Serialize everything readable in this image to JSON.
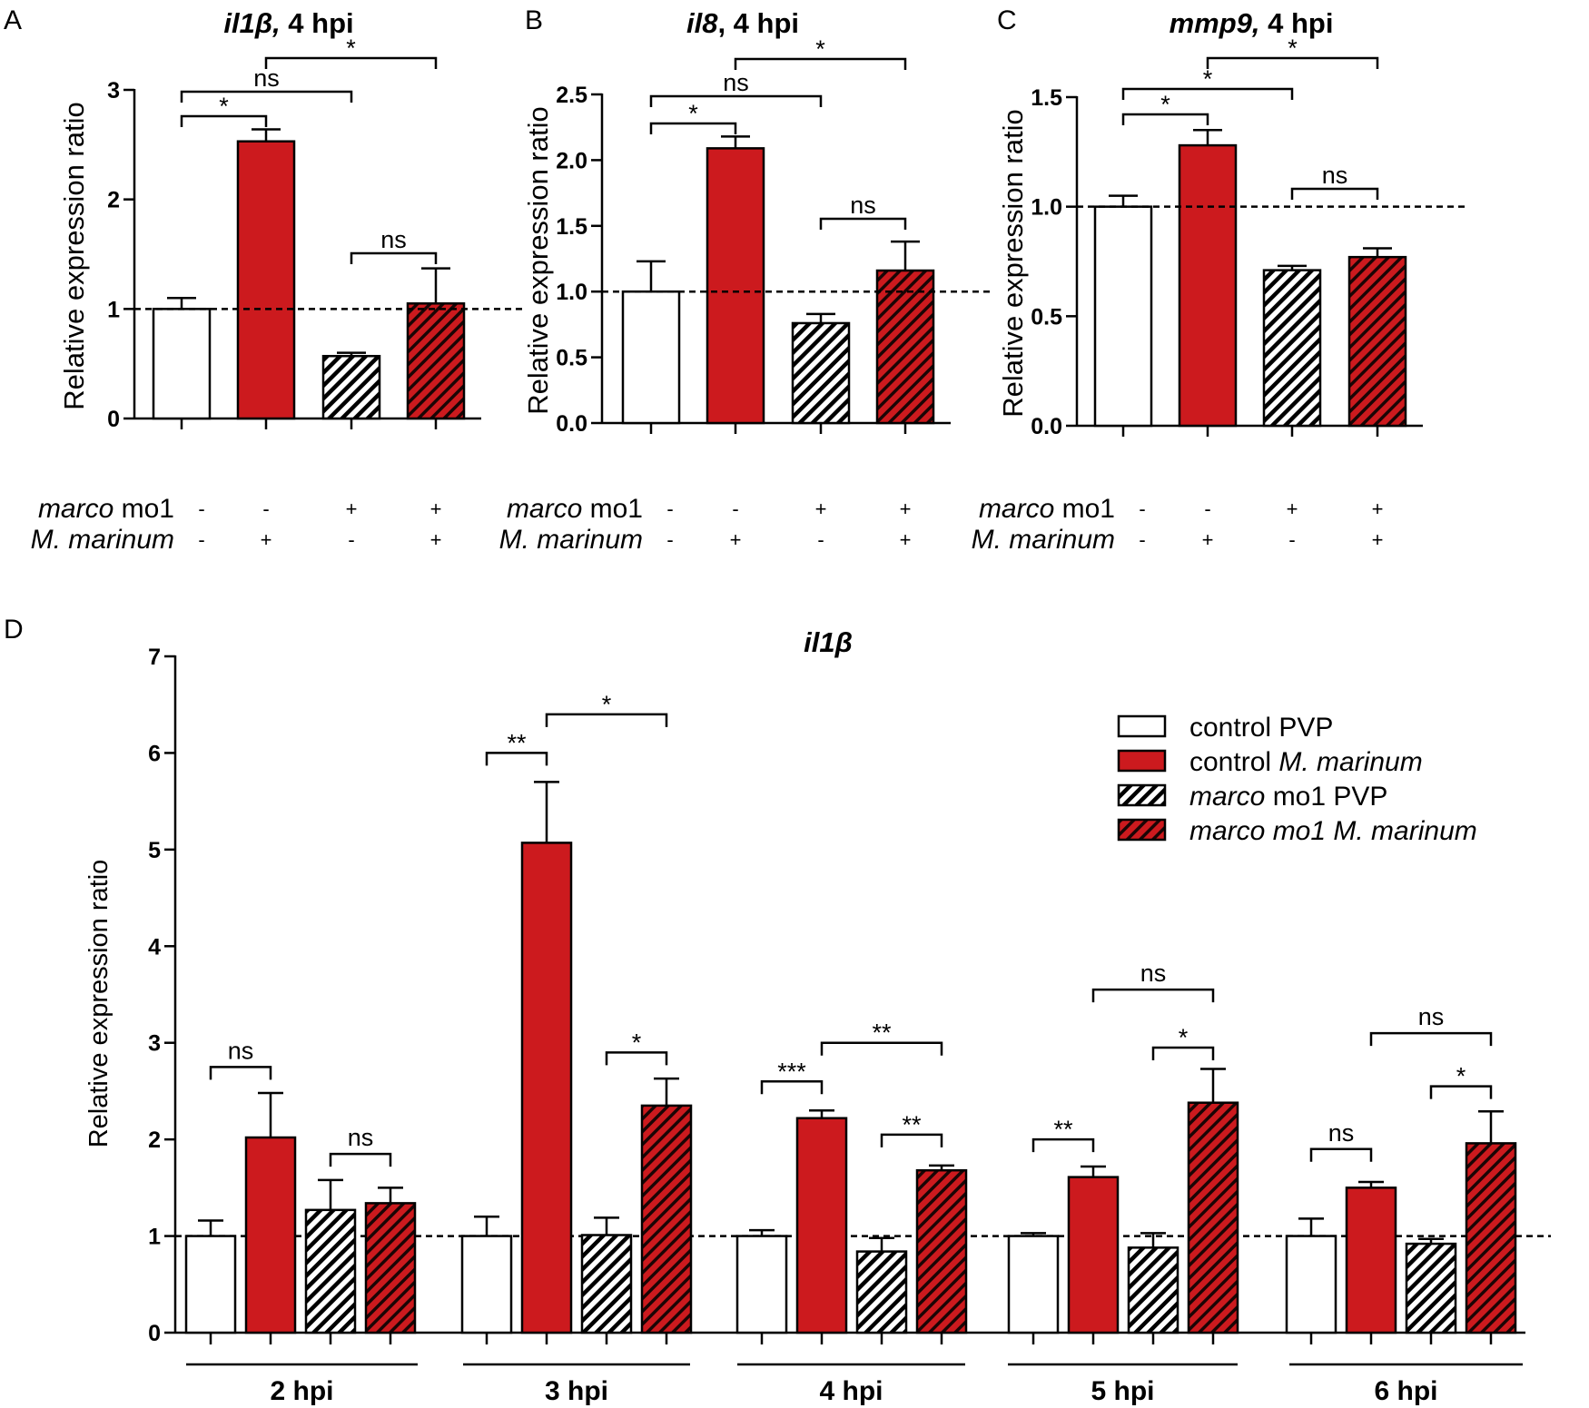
{
  "colors": {
    "control_pvp_fill": "#ffffff",
    "control_mm_fill": "#cc1a1e",
    "mo_pvp_fill": "#ffffff",
    "mo_pvp_hatch": "#000000",
    "mo_mm_fill": "#cc1a1e",
    "mo_mm_hatch": "#000000",
    "outline": "#000000"
  },
  "row_labels": [
    "marco mo1",
    "M. marinum"
  ],
  "chart_data": [
    {
      "panel": "A",
      "type": "bar",
      "title": "il1β, 4 hpi",
      "title_gene": "il1β,",
      "title_rest": " 4 hpi",
      "ylabel": "Relative  expression ratio",
      "ylim": [
        0,
        3
      ],
      "yticks": [
        "0",
        "1",
        "2",
        "3"
      ],
      "reference_line": 1,
      "categories": [
        "control PVP",
        "control M. marinum",
        "marco mo1 PVP",
        "marco mo1 M. marinum"
      ],
      "values": [
        1.0,
        2.53,
        0.57,
        1.05
      ],
      "errors": [
        0.1,
        0.11,
        0.03,
        0.32
      ],
      "marco_mo1": [
        "-",
        "-",
        "+",
        "+"
      ],
      "m_marinum": [
        "-",
        "+",
        "-",
        "+"
      ],
      "comparisons": [
        {
          "from": 0,
          "to": 1,
          "label": "*"
        },
        {
          "from": 0,
          "to": 2,
          "label": "ns"
        },
        {
          "from": 1,
          "to": 3,
          "label": "*"
        },
        {
          "from": 2,
          "to": 3,
          "label": "ns"
        }
      ]
    },
    {
      "panel": "B",
      "type": "bar",
      "title": "il8, 4 hpi",
      "title_gene": "il8",
      "title_rest": ", 4 hpi",
      "ylabel": "Relative  expression ratio",
      "ylim": [
        0,
        2.5
      ],
      "yticks": [
        "0.0",
        "0.5",
        "1.0",
        "1.5",
        "2.0",
        "2.5"
      ],
      "reference_line": 1,
      "categories": [
        "control PVP",
        "control M. marinum",
        "marco mo1 PVP",
        "marco mo1 M. marinum"
      ],
      "values": [
        1.0,
        2.09,
        0.76,
        1.16
      ],
      "errors": [
        0.23,
        0.09,
        0.07,
        0.22
      ],
      "marco_mo1": [
        "-",
        "-",
        "+",
        "+"
      ],
      "m_marinum": [
        "-",
        "+",
        "-",
        "+"
      ],
      "comparisons": [
        {
          "from": 0,
          "to": 1,
          "label": "*"
        },
        {
          "from": 0,
          "to": 2,
          "label": "ns"
        },
        {
          "from": 1,
          "to": 3,
          "label": "*"
        },
        {
          "from": 2,
          "to": 3,
          "label": "ns"
        }
      ]
    },
    {
      "panel": "C",
      "type": "bar",
      "title": "mmp9, 4 hpi",
      "title_gene": "mmp9,",
      "title_rest": " 4 hpi",
      "ylabel": "Relative  expression ratio",
      "ylim": [
        0,
        1.5
      ],
      "yticks": [
        "0.0",
        "0.5",
        "1.0",
        "1.5"
      ],
      "reference_line": 1,
      "categories": [
        "control PVP",
        "control M. marinum",
        "marco mo1 PVP",
        "marco mo1 M. marinum"
      ],
      "values": [
        1.0,
        1.28,
        0.71,
        0.77
      ],
      "errors": [
        0.05,
        0.07,
        0.02,
        0.04
      ],
      "marco_mo1": [
        "-",
        "-",
        "+",
        "+"
      ],
      "m_marinum": [
        "-",
        "+",
        "-",
        "+"
      ],
      "comparisons": [
        {
          "from": 0,
          "to": 1,
          "label": "*"
        },
        {
          "from": 0,
          "to": 2,
          "label": "*"
        },
        {
          "from": 1,
          "to": 3,
          "label": "*"
        },
        {
          "from": 2,
          "to": 3,
          "label": "ns"
        }
      ]
    },
    {
      "panel": "D",
      "type": "bar",
      "title": "il1β",
      "ylabel": "Relative expression ratio",
      "ylim": [
        0,
        7
      ],
      "yticks": [
        "0",
        "1",
        "2",
        "3",
        "4",
        "5",
        "6",
        "7"
      ],
      "reference_line": 1,
      "legend_position": "top-right",
      "legend": [
        {
          "prefix": "control",
          "rest": "PVP",
          "rest_italic": false
        },
        {
          "prefix": "control",
          "rest": "M. marinum",
          "rest_italic": true
        },
        {
          "prefix": "marco",
          "prefix_italic": true,
          "rest": "mo1 PVP",
          "rest_italic": false
        },
        {
          "prefix": "marco",
          "prefix_italic": true,
          "rest": "mo1 M. marinum",
          "rest_italic": true
        }
      ],
      "groups": [
        {
          "label": "2 hpi",
          "values": [
            1.0,
            2.02,
            1.27,
            1.34
          ],
          "errors": [
            0.16,
            0.46,
            0.31,
            0.16
          ],
          "comparisons": [
            {
              "from": 0,
              "to": 1,
              "label": "ns",
              "y": 2.75
            },
            {
              "from": 2,
              "to": 3,
              "label": "ns",
              "y": 1.85
            }
          ]
        },
        {
          "label": "3 hpi",
          "values": [
            1.0,
            5.07,
            1.01,
            2.35
          ],
          "errors": [
            0.2,
            0.63,
            0.18,
            0.28
          ],
          "comparisons": [
            {
              "from": 0,
              "to": 1,
              "label": "**",
              "y": 6.0
            },
            {
              "from": 1,
              "to": 3,
              "label": "*",
              "y": 6.4
            },
            {
              "from": 2,
              "to": 3,
              "label": "*",
              "y": 2.9
            }
          ]
        },
        {
          "label": "4 hpi",
          "values": [
            1.0,
            2.22,
            0.84,
            1.68
          ],
          "errors": [
            0.06,
            0.08,
            0.14,
            0.05
          ],
          "comparisons": [
            {
              "from": 0,
              "to": 1,
              "label": "***",
              "y": 2.6
            },
            {
              "from": 1,
              "to": 3,
              "label": "**",
              "y": 3.0
            },
            {
              "from": 2,
              "to": 3,
              "label": "**",
              "y": 2.05
            }
          ]
        },
        {
          "label": "5 hpi",
          "values": [
            1.0,
            1.61,
            0.88,
            2.38
          ],
          "errors": [
            0.03,
            0.11,
            0.15,
            0.35
          ],
          "comparisons": [
            {
              "from": 0,
              "to": 1,
              "label": "**",
              "y": 2.0
            },
            {
              "from": 1,
              "to": 3,
              "label": "ns",
              "y": 3.55
            },
            {
              "from": 2,
              "to": 3,
              "label": "*",
              "y": 2.95
            }
          ]
        },
        {
          "label": "6 hpi",
          "values": [
            1.0,
            1.5,
            0.92,
            1.96
          ],
          "errors": [
            0.18,
            0.06,
            0.05,
            0.33
          ],
          "comparisons": [
            {
              "from": 0,
              "to": 1,
              "label": "ns",
              "y": 1.9
            },
            {
              "from": 1,
              "to": 3,
              "label": "ns",
              "y": 3.1
            },
            {
              "from": 2,
              "to": 3,
              "label": "*",
              "y": 2.55
            }
          ]
        }
      ]
    }
  ]
}
